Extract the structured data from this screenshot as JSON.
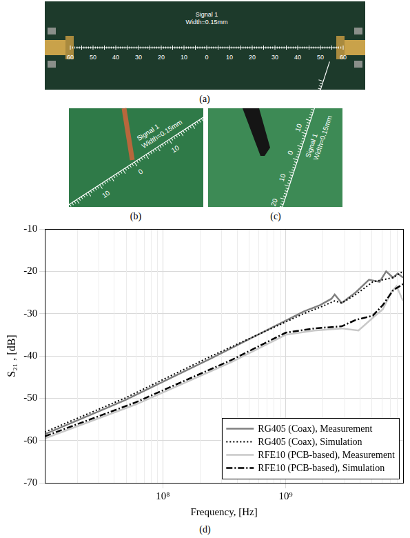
{
  "figure": {
    "panels": [
      {
        "label": "(a)",
        "texts": [
          "Signal 1",
          "Width=0.15mm"
        ],
        "ruler_labels": [
          60,
          50,
          40,
          30,
          20,
          10,
          0,
          10,
          20,
          30,
          40,
          50,
          60
        ]
      },
      {
        "label": "(b)",
        "texts": [
          "Signal 1",
          "Width=0.15mm"
        ],
        "ruler_labels": [
          10,
          0,
          10
        ]
      },
      {
        "label": "(c)",
        "texts": [
          "Signal 1",
          "Width=0.15mm"
        ],
        "ruler_labels": [
          10,
          0,
          10,
          20
        ]
      }
    ]
  },
  "chart_data": {
    "panel_label": "(d)",
    "type": "line",
    "x_label": "Frequency, [Hz]",
    "y_label": "S₂₁ , [dB]",
    "log": "x",
    "xlim": [
      11000000,
      9000000000
    ],
    "xticks": [
      {
        "value": 100000000,
        "label": "10⁸"
      },
      {
        "value": 1000000000,
        "label": "10⁹"
      }
    ],
    "ylim": [
      -70,
      -10
    ],
    "yticks": [
      -70,
      -60,
      -50,
      -40,
      -30,
      -20,
      -10
    ],
    "grid": true,
    "legend": "lower right",
    "series": [
      {
        "name": "RG405 (Coax), Measurement",
        "color": "#808080",
        "line_style": "solid",
        "x": [
          11000000,
          49000000,
          250000000,
          1400000000,
          1900000000,
          2350000000,
          2500000000,
          2850000000,
          3700000000,
          4750000000,
          5800000000,
          6550000000,
          7450000000,
          8150000000,
          9000000000
        ],
        "values": [
          -58.5,
          -50.5,
          -40.5,
          -29.5,
          -28,
          -26.5,
          -25.5,
          -27.5,
          -25,
          -22,
          -22.5,
          -20,
          -21.5,
          -20.5,
          -21.5
        ]
      },
      {
        "name": "RG405 (Coax), Simulation",
        "color": "#000000",
        "line_style": "dotted",
        "x": [
          11000000,
          49000000,
          250000000,
          1400000000,
          1900000000,
          2500000000,
          2850000000,
          3700000000,
          5100000000,
          6150000000,
          7450000000,
          9000000000
        ],
        "values": [
          -58,
          -50,
          -40,
          -30,
          -28.5,
          -27,
          -27.5,
          -25.5,
          -22.5,
          -22,
          -21.5,
          -20
        ]
      },
      {
        "name": "RFE10 (PCB-based), Measurement",
        "color": "#c8c8c8",
        "line_style": "solid",
        "x": [
          11000000,
          60000000,
          360000000,
          1000000000,
          1700000000,
          2850000000,
          3900000000,
          5100000000,
          6150000000,
          7200000000,
          7950000000,
          9000000000
        ],
        "values": [
          -59.5,
          -51.5,
          -41.5,
          -35,
          -34,
          -33.5,
          -34,
          -31,
          -29,
          -25,
          -23.5,
          -27
        ]
      },
      {
        "name": "RFE10 (PCB-based), Simulation",
        "color": "#000000",
        "line_style": "dashdot",
        "x": [
          11000000,
          60000000,
          360000000,
          1000000000,
          1700000000,
          2850000000,
          3700000000,
          5100000000,
          6150000000,
          7450000000,
          9000000000
        ],
        "values": [
          -59,
          -51,
          -41,
          -34.5,
          -33.5,
          -33,
          -31.5,
          -30.5,
          -28,
          -24.5,
          -23
        ]
      }
    ]
  }
}
